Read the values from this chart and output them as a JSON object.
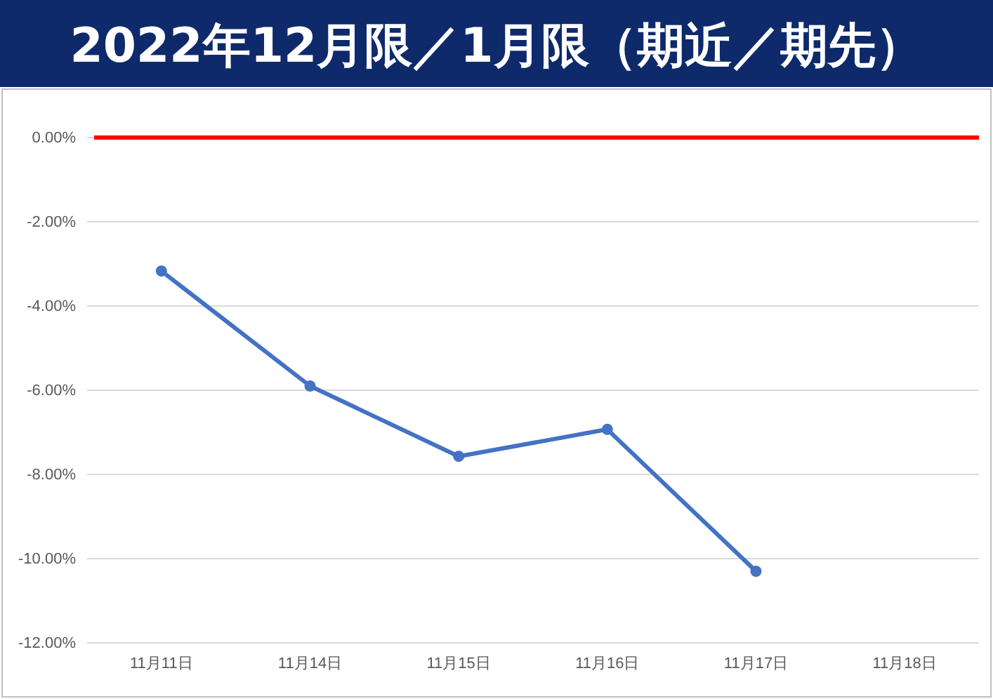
{
  "chart_data": {
    "type": "line",
    "title": "2022年12月限／1月限（期近／期先）",
    "categories": [
      "11月11日",
      "11月14日",
      "11月15日",
      "11月16日",
      "11月17日",
      "11月18日"
    ],
    "series": [
      {
        "color": "#4472c4",
        "values": [
          -3.17,
          -5.9,
          -7.57,
          -6.93,
          -10.3,
          null
        ]
      }
    ],
    "ylim": [
      -12,
      0
    ],
    "yticks": [
      {
        "value": 0,
        "label": "0.00%"
      },
      {
        "value": -2,
        "label": "-2.00%"
      },
      {
        "value": -4,
        "label": "-4.00%"
      },
      {
        "value": -6,
        "label": "-6.00%"
      },
      {
        "value": -8,
        "label": "-8.00%"
      },
      {
        "value": -10,
        "label": "-10.00%"
      },
      {
        "value": -12,
        "label": "-12.00%"
      }
    ],
    "grid": "y",
    "marker": "circle",
    "line_style": "solid",
    "ref_lines": [
      {
        "axis": "y",
        "value": 0,
        "color": "#ff0000"
      }
    ]
  }
}
